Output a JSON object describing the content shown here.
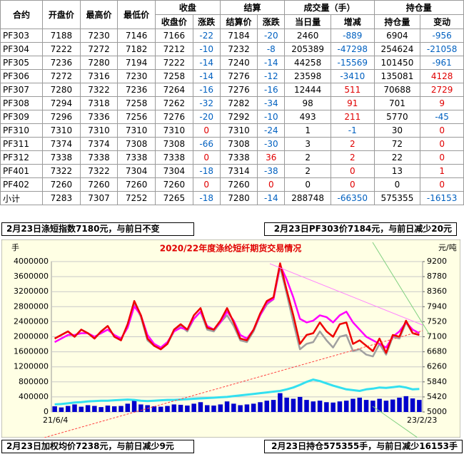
{
  "table": {
    "header_top": [
      "合约",
      "开盘价",
      "最高价",
      "最低价",
      "收盘",
      "结算",
      "成交量（手）",
      "持仓量"
    ],
    "header_sub": [
      "收盘价",
      "涨跌",
      "结算价",
      "涨跌",
      "当日量",
      "增减",
      "持仓量",
      "变动"
    ],
    "rows": [
      [
        "PF303",
        7188,
        7230,
        7146,
        7166,
        -22,
        7184,
        -20,
        2460,
        -889,
        6904,
        -956
      ],
      [
        "PF304",
        7222,
        7272,
        7182,
        7212,
        -10,
        7232,
        -8,
        205389,
        -47298,
        254624,
        -21058
      ],
      [
        "PF305",
        7236,
        7280,
        7194,
        7222,
        -14,
        7240,
        -14,
        44258,
        -15569,
        101450,
        -961
      ],
      [
        "PF306",
        7272,
        7316,
        7230,
        7258,
        -14,
        7276,
        -12,
        23598,
        -3410,
        135081,
        4128
      ],
      [
        "PF307",
        7280,
        7322,
        7236,
        7264,
        -16,
        7276,
        -16,
        12444,
        511,
        70688,
        2729
      ],
      [
        "PF308",
        7294,
        7318,
        7258,
        7262,
        -32,
        7282,
        -34,
        98,
        91,
        701,
        9
      ],
      [
        "PF309",
        7296,
        7336,
        7256,
        7276,
        -20,
        7292,
        -10,
        493,
        211,
        5770,
        -45
      ],
      [
        "PF310",
        7310,
        7310,
        7310,
        7310,
        0,
        7310,
        -24,
        1,
        -1,
        30,
        0
      ],
      [
        "PF311",
        7374,
        7374,
        7308,
        7308,
        -66,
        7308,
        -30,
        3,
        2,
        72,
        0
      ],
      [
        "PF312",
        7338,
        7338,
        7338,
        7338,
        0,
        7338,
        36,
        2,
        2,
        22,
        0
      ],
      [
        "PF401",
        7322,
        7322,
        7304,
        7304,
        -18,
        7314,
        -38,
        2,
        0,
        13,
        1
      ],
      [
        "PF402",
        7260,
        7260,
        7260,
        7260,
        0,
        7260,
        0,
        0,
        0,
        0,
        0
      ],
      [
        "小计",
        7283,
        7307,
        7252,
        7265,
        -18,
        7280,
        -14,
        288748,
        -66350,
        575355,
        -16153
      ]
    ]
  },
  "notes": [
    "2月23日涤短指数7180元，与前日不变",
    "2月23日PF303价7184元，与前日减少20元",
    "2月23日加权均价7238元，与前日减少9元",
    "2月23日持仓575355手，与前日减少16153手"
  ],
  "chart_data": {
    "type": "combo",
    "title": "2020/22年度涤纶短纤期货交易情况",
    "y_label": "手",
    "y2_label": "元/吨",
    "categories": [
      "21/6/4",
      null,
      null,
      null,
      null,
      null,
      null,
      null,
      null,
      null,
      null,
      null,
      null,
      null,
      null,
      null,
      null,
      null,
      null,
      null,
      null,
      null,
      null,
      null,
      null,
      null,
      null,
      null,
      null,
      null,
      null,
      null,
      null,
      null,
      null,
      null,
      null,
      null,
      null,
      null,
      null,
      null,
      null,
      null,
      null,
      null,
      null,
      null,
      null,
      null,
      null,
      null,
      null,
      null,
      null,
      "23/2/23"
    ],
    "ylim": [
      0,
      4000000
    ],
    "yticks": [
      0,
      400000,
      800000,
      1200000,
      1600000,
      2000000,
      2400000,
      2800000,
      3200000,
      3600000,
      4000000
    ],
    "y2lim": [
      5000,
      9200
    ],
    "y2ticks": [
      5000,
      5420,
      5840,
      6260,
      6680,
      7100,
      7520,
      7940,
      8360,
      8780,
      9200
    ],
    "grid": true,
    "series": [
      {
        "kind": "bar",
        "color": "#0000cc",
        "values": [
          150000,
          120000,
          160000,
          200000,
          140000,
          180000,
          160000,
          130000,
          170000,
          150000,
          160000,
          220000,
          300000,
          200000,
          180000,
          150000,
          140000,
          160000,
          200000,
          190000,
          170000,
          220000,
          260000,
          180000,
          170000,
          200000,
          280000,
          220000,
          180000,
          200000,
          220000,
          260000,
          300000,
          320000,
          500000,
          380000,
          350000,
          400000,
          320000,
          280000,
          300000,
          260000,
          250000,
          280000,
          300000,
          350000,
          380000,
          320000,
          300000,
          350000,
          300000,
          330000,
          380000,
          420000,
          360000,
          320000
        ]
      },
      {
        "kind": "line",
        "color": "#33e0f0",
        "values": [
          200000,
          210000,
          230000,
          250000,
          260000,
          280000,
          290000,
          300000,
          300000,
          310000,
          320000,
          330000,
          320000,
          300000,
          290000,
          300000,
          310000,
          320000,
          320000,
          330000,
          340000,
          350000,
          360000,
          370000,
          380000,
          390000,
          400000,
          420000,
          440000,
          460000,
          480000,
          500000,
          520000,
          540000,
          560000,
          600000,
          650000,
          720000,
          800000,
          860000,
          820000,
          760000,
          700000,
          650000,
          600000,
          580000,
          560000,
          600000,
          620000,
          650000,
          640000,
          660000,
          680000,
          650000,
          600000,
          610000
        ]
      },
      {
        "kind": "line",
        "axis": "y2",
        "color": "#a0a0a0",
        "values": [
          7050,
          7150,
          7250,
          7100,
          7300,
          7200,
          7050,
          7250,
          7400,
          7100,
          7000,
          7450,
          8050,
          7650,
          7000,
          6850,
          6750,
          6900,
          7250,
          7400,
          7250,
          7600,
          7800,
          7300,
          7250,
          7500,
          7700,
          7400,
          7000,
          6950,
          7250,
          7700,
          8000,
          8150,
          9050,
          8300,
          7500,
          6750,
          6900,
          6950,
          7250,
          7000,
          6800,
          7100,
          7150,
          6700,
          6750,
          6600,
          6550,
          6900,
          6600,
          7100,
          7050,
          7500,
          7200,
          7150
        ]
      },
      {
        "kind": "line",
        "axis": "y2",
        "color": "#ff00ff",
        "values": [
          6950,
          7050,
          7150,
          7150,
          7200,
          7200,
          7100,
          7200,
          7300,
          7150,
          7050,
          7350,
          7950,
          7700,
          7150,
          6900,
          6800,
          6950,
          7250,
          7350,
          7300,
          7600,
          7800,
          7400,
          7300,
          7500,
          7800,
          7550,
          7150,
          7050,
          7300,
          7700,
          8050,
          8150,
          9100,
          8700,
          8200,
          7600,
          7500,
          7550,
          7700,
          7650,
          7500,
          7700,
          7800,
          7500,
          7300,
          7100,
          7000,
          6900,
          6800,
          7100,
          7250,
          7500,
          7300,
          7200
        ]
      },
      {
        "kind": "line",
        "axis": "y2",
        "color": "#ee0000",
        "values": [
          7050,
          7150,
          7250,
          7100,
          7300,
          7200,
          7050,
          7250,
          7400,
          7100,
          7000,
          7450,
          8100,
          7700,
          7050,
          6850,
          6750,
          6900,
          7300,
          7450,
          7300,
          7700,
          7900,
          7350,
          7300,
          7550,
          7900,
          7500,
          7050,
          7000,
          7300,
          7750,
          8100,
          8200,
          9150,
          8400,
          7700,
          6900,
          7150,
          7200,
          7500,
          7250,
          7100,
          7450,
          7500,
          6900,
          7000,
          6850,
          6700,
          7050,
          6650,
          7150,
          7100,
          7550,
          7200,
          7150
        ]
      }
    ]
  }
}
